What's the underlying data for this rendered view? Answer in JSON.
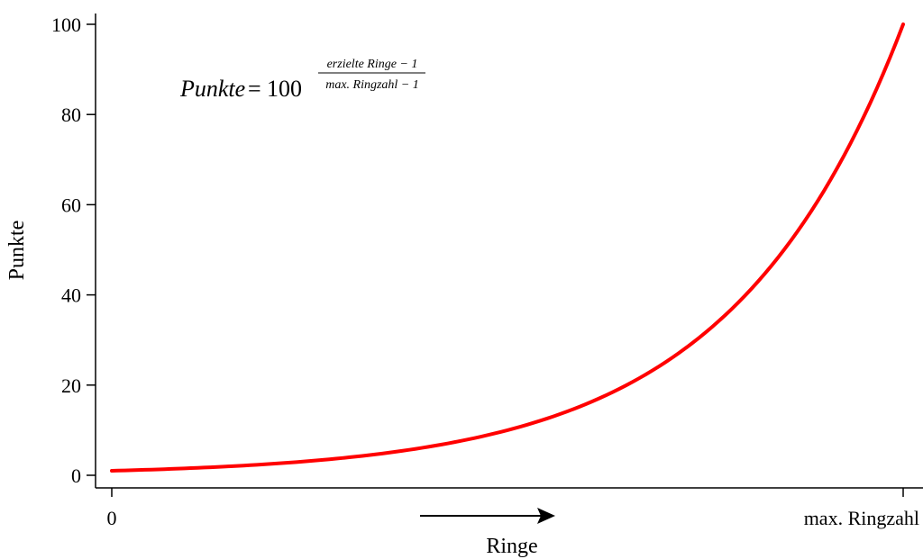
{
  "chart_data": {
    "type": "line",
    "title": "",
    "xlabel": "Ringe",
    "ylabel": "Punkte",
    "xlim": [
      0,
      1
    ],
    "ylim": [
      0,
      100
    ],
    "x_tick_labels": [
      "0",
      "max. Ringzahl"
    ],
    "y_ticks": [
      0,
      20,
      40,
      60,
      80,
      100
    ],
    "y_tick_labels": [
      "0",
      "20",
      "40",
      "60",
      "80",
      "100"
    ],
    "grid": false,
    "legend": "none",
    "series": [
      {
        "color": "#ff0000",
        "curve": "exponential",
        "x": [
          0,
          0.1,
          0.2,
          0.3,
          0.4,
          0.5,
          0.6,
          0.7,
          0.8,
          0.9,
          1.0
        ],
        "values": [
          1,
          1.6,
          2.5,
          4.0,
          6.3,
          10,
          15.8,
          25.1,
          39.8,
          63.1,
          100
        ]
      }
    ],
    "annotations": {
      "formula_lhs": "Punkte",
      "formula_equals": "=",
      "formula_base": "100",
      "formula_numerator": "erzielte Ringe − 1",
      "formula_denominator": "max. Ringzahl − 1"
    }
  }
}
